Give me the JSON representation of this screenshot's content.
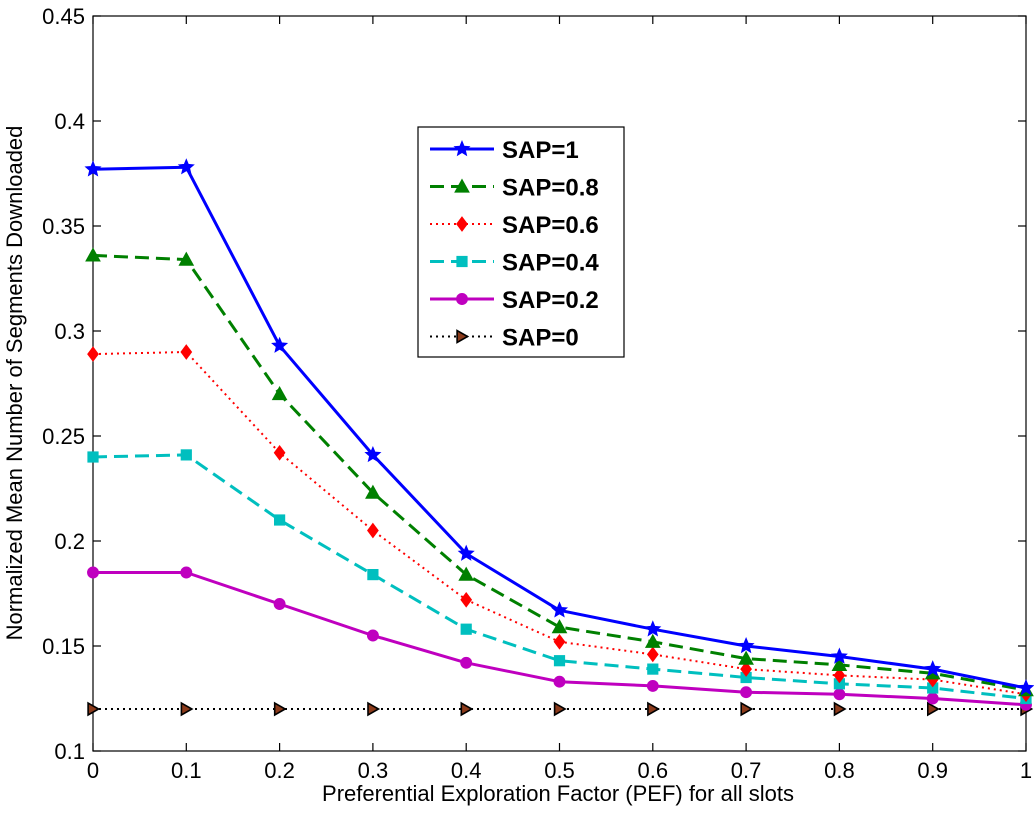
{
  "chart_data": {
    "type": "line",
    "title": "",
    "xlabel": "Preferential Exploration Factor (PEF) for all slots",
    "ylabel": "Normalized Mean Number of Segments Downloaded",
    "xlim": [
      0,
      1
    ],
    "ylim": [
      0.1,
      0.45
    ],
    "x": [
      0,
      0.1,
      0.2,
      0.3,
      0.4,
      0.5,
      0.6,
      0.7,
      0.8,
      0.9,
      1
    ],
    "x_tick_labels": [
      "0",
      "0.1",
      "0.2",
      "0.3",
      "0.4",
      "0.5",
      "0.6",
      "0.7",
      "0.8",
      "0.9",
      "1"
    ],
    "y_ticks": [
      0.1,
      0.15,
      0.2,
      0.25,
      0.3,
      0.35,
      0.4,
      0.45
    ],
    "y_tick_labels": [
      "0.1",
      "0.15",
      "0.2",
      "0.25",
      "0.3",
      "0.35",
      "0.4",
      "0.45"
    ],
    "legend_position": "top-center",
    "grid": false,
    "series": [
      {
        "name": "SAP=1",
        "color": "#0000ff",
        "dash": "solid",
        "marker": "star",
        "values": [
          0.377,
          0.378,
          0.293,
          0.241,
          0.194,
          0.167,
          0.158,
          0.15,
          0.145,
          0.139,
          0.13
        ]
      },
      {
        "name": "SAP=0.8",
        "color": "#008000",
        "dash": "dashed",
        "marker": "triangle",
        "values": [
          0.336,
          0.334,
          0.27,
          0.223,
          0.184,
          0.159,
          0.152,
          0.144,
          0.141,
          0.137,
          0.129
        ]
      },
      {
        "name": "SAP=0.6",
        "color": "#ff0000",
        "dash": "dotted",
        "marker": "diamond",
        "values": [
          0.289,
          0.29,
          0.242,
          0.205,
          0.172,
          0.152,
          0.146,
          0.139,
          0.136,
          0.134,
          0.127
        ]
      },
      {
        "name": "SAP=0.4",
        "color": "#00bfbf",
        "dash": "dashed",
        "marker": "square",
        "values": [
          0.24,
          0.241,
          0.21,
          0.184,
          0.158,
          0.143,
          0.139,
          0.135,
          0.132,
          0.13,
          0.125
        ]
      },
      {
        "name": "SAP=0.2",
        "color": "#bf00bf",
        "dash": "solid",
        "marker": "circle",
        "values": [
          0.185,
          0.185,
          0.17,
          0.155,
          0.142,
          0.133,
          0.131,
          0.128,
          0.127,
          0.125,
          0.122
        ]
      },
      {
        "name": "SAP=0",
        "color": "#000000",
        "dash": "dotted",
        "marker": "triangle-right",
        "values": [
          0.12,
          0.12,
          0.12,
          0.12,
          0.12,
          0.12,
          0.12,
          0.12,
          0.12,
          0.12,
          0.12
        ]
      }
    ]
  }
}
